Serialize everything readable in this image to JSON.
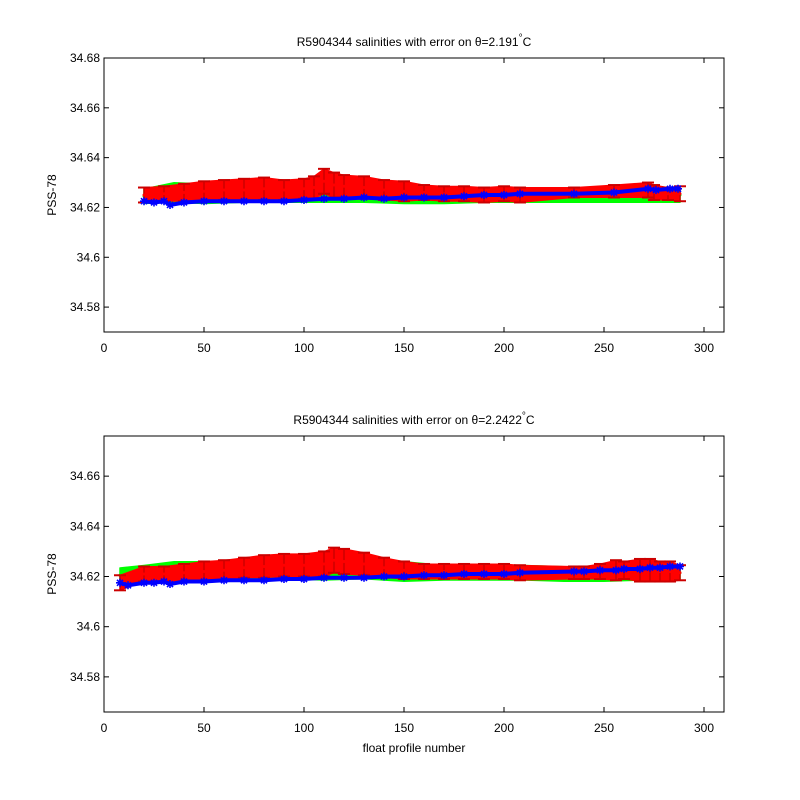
{
  "chart_data": [
    {
      "type": "scatter",
      "title": "R5904344 salinities with error on θ=2.191°C",
      "title_parts": {
        "text": "R5904344 salinities with error on θ=2.191",
        "deg": "°",
        "unit": "C"
      },
      "xlabel": "",
      "ylabel": "PSS-78",
      "xlim": [
        0,
        310
      ],
      "ylim": [
        34.57,
        34.68
      ],
      "xticks": [
        0,
        50,
        100,
        150,
        200,
        250,
        300
      ],
      "yticks": [
        34.58,
        34.6,
        34.62,
        34.64,
        34.66,
        34.68
      ],
      "ytick_labels": [
        "34.58",
        "34.6",
        "34.62",
        "34.64",
        "34.66",
        "34.68"
      ],
      "series": [
        {
          "color": "#00ff00",
          "x": [
            20,
            35,
            50,
            70,
            90,
            110,
            130,
            150,
            170,
            190,
            210,
            230,
            250,
            270,
            288
          ],
          "y": [
            34.6245,
            34.626,
            34.6255,
            34.626,
            34.626,
            34.627,
            34.626,
            34.6255,
            34.6245,
            34.625,
            34.625,
            34.625,
            34.625,
            34.625,
            34.625
          ],
          "err": [
            0.003,
            0.004,
            0.004,
            0.004,
            0.004,
            0.005,
            0.004,
            0.004,
            0.003,
            0.003,
            0.003,
            0.003,
            0.003,
            0.003,
            0.003
          ]
        },
        {
          "color": "#ff0000",
          "x": [
            20,
            30,
            40,
            50,
            60,
            70,
            80,
            90,
            100,
            105,
            110,
            115,
            120,
            130,
            140,
            150,
            160,
            170,
            180,
            190,
            200,
            208,
            235,
            255,
            272,
            275,
            282,
            288
          ],
          "y": [
            34.625,
            34.6255,
            34.626,
            34.6265,
            34.627,
            34.627,
            34.6275,
            34.627,
            34.6275,
            34.628,
            34.6305,
            34.629,
            34.6285,
            34.628,
            34.627,
            34.6265,
            34.626,
            34.6255,
            34.6255,
            34.625,
            34.6255,
            34.625,
            34.626,
            34.6265,
            34.627,
            34.626,
            34.6255,
            34.6255
          ],
          "err": [
            0.003,
            0.003,
            0.0035,
            0.004,
            0.004,
            0.0045,
            0.0045,
            0.004,
            0.004,
            0.0045,
            0.005,
            0.005,
            0.0045,
            0.0045,
            0.004,
            0.004,
            0.003,
            0.003,
            0.003,
            0.003,
            0.003,
            0.003,
            0.002,
            0.0025,
            0.003,
            0.003,
            0.0025,
            0.003
          ]
        },
        {
          "color": "#0000ff",
          "x": [
            20,
            25,
            30,
            33,
            40,
            50,
            60,
            70,
            80,
            90,
            100,
            110,
            120,
            130,
            140,
            150,
            160,
            170,
            180,
            190,
            200,
            208,
            235,
            255,
            272,
            276,
            283,
            287
          ],
          "y": [
            34.6225,
            34.622,
            34.6225,
            34.621,
            34.622,
            34.6225,
            34.6225,
            34.6225,
            34.6225,
            34.6225,
            34.623,
            34.6235,
            34.6235,
            34.624,
            34.6235,
            34.624,
            34.624,
            34.624,
            34.6245,
            34.625,
            34.625,
            34.6255,
            34.6255,
            34.626,
            34.6275,
            34.627,
            34.6275,
            34.6275
          ]
        }
      ]
    },
    {
      "type": "scatter",
      "title": "R5904344 salinities with error on θ=2.2422°C",
      "title_parts": {
        "text": "R5904344 salinities with error on θ=2.2422",
        "deg": "°",
        "unit": "C"
      },
      "xlabel": "float profile number",
      "ylabel": "PSS-78",
      "xlim": [
        0,
        310
      ],
      "ylim": [
        34.566,
        34.676
      ],
      "xticks": [
        0,
        50,
        100,
        150,
        200,
        250,
        300
      ],
      "yticks": [
        34.58,
        34.6,
        34.62,
        34.64,
        34.66
      ],
      "ytick_labels": [
        "34.58",
        "34.6",
        "34.62",
        "34.64",
        "34.66"
      ],
      "series": [
        {
          "color": "#00ff00",
          "x": [
            8,
            20,
            35,
            50,
            70,
            90,
            110,
            130,
            150,
            170,
            190,
            210,
            230,
            250,
            270,
            288
          ],
          "y": [
            34.6205,
            34.6215,
            34.622,
            34.622,
            34.6225,
            34.623,
            34.6235,
            34.623,
            34.622,
            34.6215,
            34.6215,
            34.6215,
            34.621,
            34.621,
            34.6215,
            34.6215
          ],
          "err": [
            0.003,
            0.003,
            0.004,
            0.004,
            0.004,
            0.004,
            0.005,
            0.004,
            0.004,
            0.003,
            0.003,
            0.003,
            0.003,
            0.003,
            0.003,
            0.003
          ]
        },
        {
          "color": "#ff0000",
          "x": [
            8,
            20,
            30,
            40,
            50,
            60,
            70,
            80,
            90,
            100,
            110,
            115,
            120,
            130,
            140,
            150,
            160,
            170,
            180,
            190,
            200,
            208,
            235,
            240,
            248,
            256,
            260,
            268,
            273,
            278,
            283,
            288
          ],
          "y": [
            34.6175,
            34.621,
            34.621,
            34.6215,
            34.622,
            34.6225,
            34.6235,
            34.624,
            34.6245,
            34.6245,
            34.625,
            34.6265,
            34.626,
            34.625,
            34.6235,
            34.6225,
            34.622,
            34.622,
            34.622,
            34.622,
            34.622,
            34.6215,
            34.6215,
            34.6215,
            34.622,
            34.6225,
            34.6225,
            34.6225,
            34.6225,
            34.622,
            34.622,
            34.6215
          ],
          "err": [
            0.003,
            0.003,
            0.003,
            0.0035,
            0.004,
            0.004,
            0.004,
            0.0045,
            0.0045,
            0.0045,
            0.005,
            0.005,
            0.005,
            0.0045,
            0.004,
            0.0035,
            0.003,
            0.003,
            0.003,
            0.003,
            0.003,
            0.003,
            0.0025,
            0.0025,
            0.003,
            0.004,
            0.0035,
            0.0045,
            0.0045,
            0.004,
            0.004,
            0.003
          ]
        },
        {
          "color": "#0000ff",
          "x": [
            8,
            12,
            20,
            25,
            30,
            33,
            40,
            50,
            60,
            70,
            80,
            90,
            100,
            110,
            120,
            130,
            140,
            150,
            160,
            170,
            180,
            190,
            200,
            208,
            235,
            240,
            248,
            256,
            260,
            268,
            273,
            278,
            283,
            288
          ],
          "y": [
            34.6175,
            34.6165,
            34.6175,
            34.6175,
            34.618,
            34.617,
            34.618,
            34.618,
            34.6185,
            34.6185,
            34.6185,
            34.619,
            34.619,
            34.6195,
            34.6195,
            34.6195,
            34.62,
            34.62,
            34.6205,
            34.6205,
            34.621,
            34.621,
            34.621,
            34.6215,
            34.622,
            34.622,
            34.6225,
            34.6225,
            34.623,
            34.623,
            34.6235,
            34.6235,
            34.624,
            34.624
          ]
        }
      ]
    }
  ]
}
